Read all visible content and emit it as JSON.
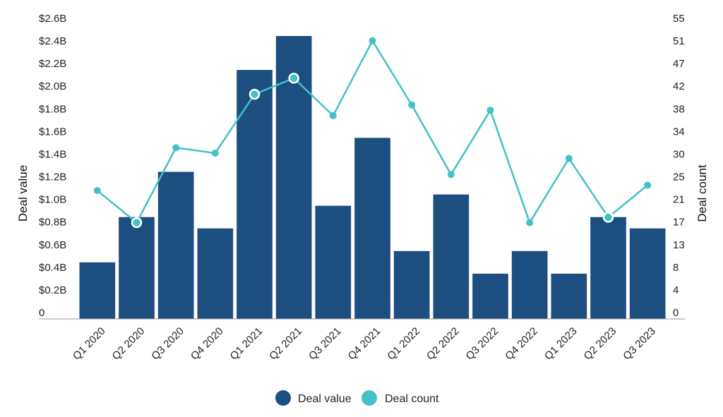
{
  "chart_data": {
    "type": "bar",
    "categories": [
      "Q1 2020",
      "Q2 2020",
      "Q3 2020",
      "Q4 2020",
      "Q1 2021",
      "Q2 2021",
      "Q3 2021",
      "Q4 2021",
      "Q1 2022",
      "Q2 2022",
      "Q3 2022",
      "Q4 2022",
      "Q1 2023",
      "Q2 2023",
      "Q3 2023"
    ],
    "series": [
      {
        "name": "Deal value",
        "type": "bar",
        "axis": "left",
        "unit": "B",
        "values": [
          0.5,
          0.9,
          1.3,
          0.8,
          2.2,
          2.5,
          1.0,
          1.6,
          0.6,
          1.1,
          0.4,
          0.6,
          0.4,
          0.9,
          0.8
        ]
      },
      {
        "name": "Deal count",
        "type": "line",
        "axis": "right",
        "values": [
          24,
          18,
          32,
          31,
          42,
          45,
          38,
          52,
          40,
          27,
          39,
          18,
          30,
          19,
          25
        ]
      }
    ],
    "ylabel": "Deal value",
    "y2label": "Deal count",
    "ylim": [
      0,
      2.6
    ],
    "y2lim": [
      0,
      55
    ],
    "yticks": [
      "0",
      "$0.2B",
      "$0.4B",
      "$0.6B",
      "$0.8B",
      "$1.0B",
      "$1.2B",
      "$1.4B",
      "$1.6B",
      "$1.8B",
      "$2.0B",
      "$2.2B",
      "$2.4B",
      "$2.6B"
    ],
    "y2ticks": [
      "0",
      "4",
      "8",
      "13",
      "17",
      "21",
      "25",
      "30",
      "34",
      "38",
      "42",
      "47",
      "51",
      "55"
    ],
    "legend": {
      "position": "bottom",
      "items": [
        "Deal value",
        "Deal count"
      ]
    },
    "highlighted_points": [
      "Q2 2020",
      "Q1 2021",
      "Q2 2021",
      "Q2 2023"
    ],
    "grid": false
  },
  "colors": {
    "bar": "#1c4e80",
    "line": "#42c2c4",
    "axis": "#9a9a9a",
    "text": "#222222"
  }
}
